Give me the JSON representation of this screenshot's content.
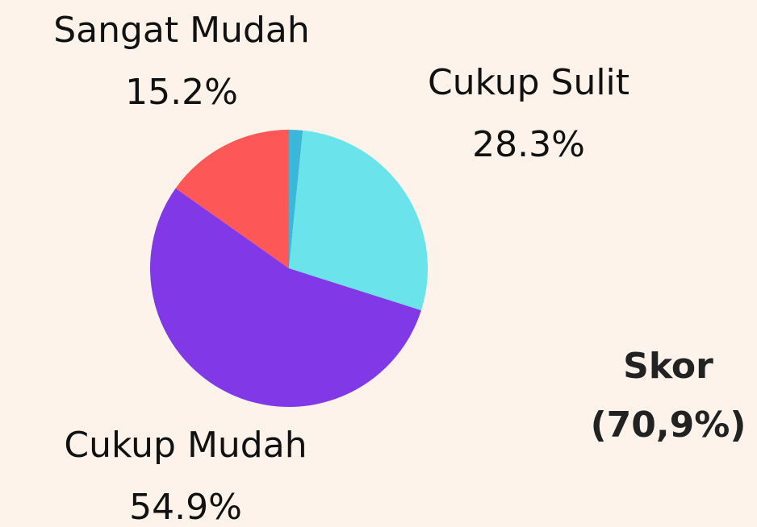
{
  "chart_data": {
    "type": "pie",
    "categories": [
      null,
      "Cukup Sulit",
      "Cukup Mudah",
      "Sangat Mudah"
    ],
    "values": [
      1.6,
      28.3,
      54.9,
      15.2
    ],
    "value_labels": [
      null,
      "28.3%",
      "54.9%",
      "15.2%"
    ],
    "colors": [
      "#3bb8d9",
      "#6ae4ea",
      "#8139e8",
      "#fd5757"
    ],
    "annotation": [
      "Skor",
      "(70,9%)"
    ]
  }
}
